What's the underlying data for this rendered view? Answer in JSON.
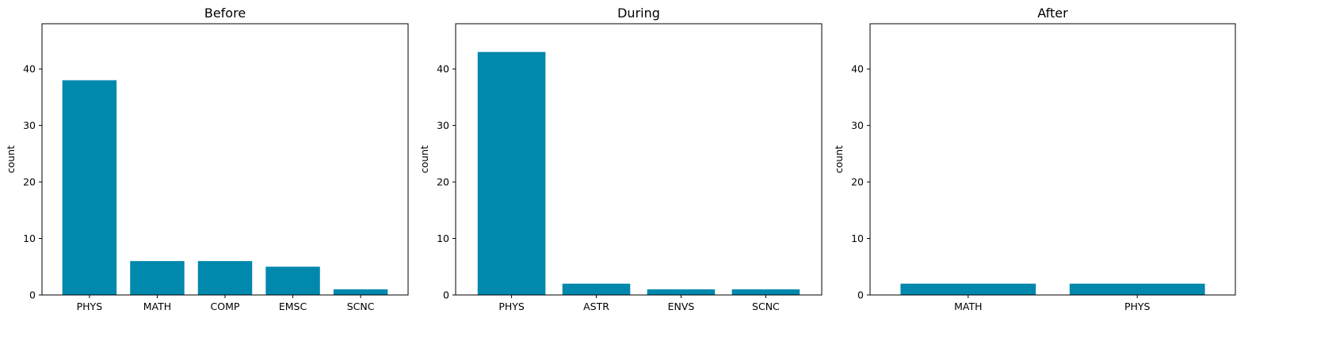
{
  "chart_data": [
    {
      "type": "bar",
      "title": "Before",
      "xlabel": "",
      "ylabel": "count",
      "categories": [
        "PHYS",
        "MATH",
        "COMP",
        "EMSC",
        "SCNC"
      ],
      "values": [
        38,
        6,
        6,
        5,
        1
      ],
      "ylim": [
        0,
        48
      ],
      "yticks": [
        0,
        10,
        20,
        30,
        40
      ],
      "grid": false,
      "bar_color": "#0088ad"
    },
    {
      "type": "bar",
      "title": "During",
      "xlabel": "",
      "ylabel": "count",
      "categories": [
        "PHYS",
        "ASTR",
        "ENVS",
        "SCNC"
      ],
      "values": [
        43,
        2,
        1,
        1
      ],
      "ylim": [
        0,
        48
      ],
      "yticks": [
        0,
        10,
        20,
        30,
        40
      ],
      "grid": false,
      "bar_color": "#0088ad"
    },
    {
      "type": "bar",
      "title": "After",
      "xlabel": "",
      "ylabel": "count",
      "categories": [
        "MATH",
        "PHYS"
      ],
      "values": [
        2,
        2
      ],
      "ylim": [
        0,
        48
      ],
      "yticks": [
        0,
        10,
        20,
        30,
        40
      ],
      "grid": false,
      "bar_color": "#0088ad"
    }
  ]
}
